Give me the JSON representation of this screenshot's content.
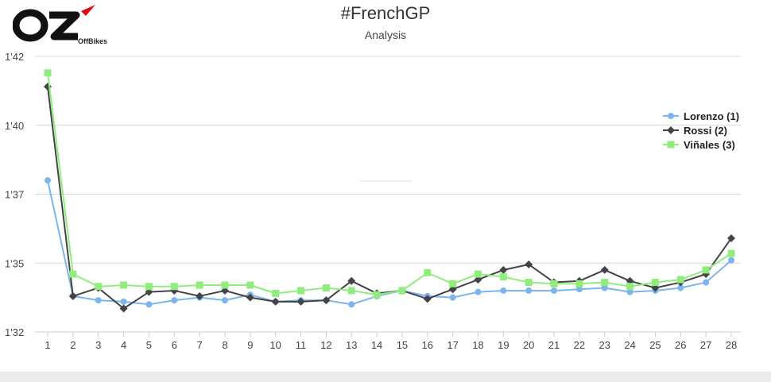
{
  "header": {
    "title": "#FrenchGP",
    "subtitle": "Analysis"
  },
  "logo": {
    "text": "OffBikes",
    "mark": "OZ"
  },
  "chart_data": {
    "type": "line",
    "x": [
      1,
      2,
      3,
      4,
      5,
      6,
      7,
      8,
      9,
      10,
      11,
      12,
      13,
      14,
      15,
      16,
      17,
      18,
      19,
      20,
      21,
      22,
      23,
      24,
      25,
      26,
      27,
      28
    ],
    "ylim": [
      92,
      102
    ],
    "yticks": [
      92,
      94.5,
      97,
      99.5,
      102
    ],
    "ytick_labels": [
      "1'32",
      "1'35",
      "1'37",
      "1'40",
      "1'42"
    ],
    "grid": true,
    "legend_position": "right",
    "series": [
      {
        "name": "Lorenzo (1)",
        "color": "#7cb5ec",
        "marker": "circle",
        "values": [
          97.5,
          93.3,
          93.15,
          93.1,
          93.0,
          93.15,
          93.25,
          93.15,
          93.35,
          93.1,
          93.15,
          93.15,
          93.0,
          93.3,
          93.5,
          93.3,
          93.25,
          93.45,
          93.5,
          93.5,
          93.5,
          93.55,
          93.6,
          93.45,
          93.5,
          93.6,
          93.8,
          94.6
        ]
      },
      {
        "name": "Rossi (2)",
        "color": "#434348",
        "marker": "diamond",
        "values": [
          100.9,
          93.3,
          93.6,
          92.85,
          93.45,
          93.5,
          93.3,
          93.5,
          93.25,
          93.1,
          93.1,
          93.15,
          93.85,
          93.4,
          93.5,
          93.2,
          93.55,
          93.9,
          94.25,
          94.45,
          93.8,
          93.85,
          94.25,
          93.85,
          93.6,
          93.8,
          94.1,
          95.4
        ]
      },
      {
        "name": "Viñales (3)",
        "color": "#90ed7d",
        "marker": "square",
        "values": [
          101.4,
          94.1,
          93.65,
          93.7,
          93.65,
          93.65,
          93.7,
          93.7,
          93.7,
          93.4,
          93.5,
          93.6,
          93.5,
          93.35,
          93.5,
          94.15,
          93.75,
          94.1,
          94.0,
          93.8,
          93.75,
          93.75,
          93.8,
          93.65,
          93.8,
          93.9,
          94.25,
          94.85
        ]
      }
    ]
  }
}
